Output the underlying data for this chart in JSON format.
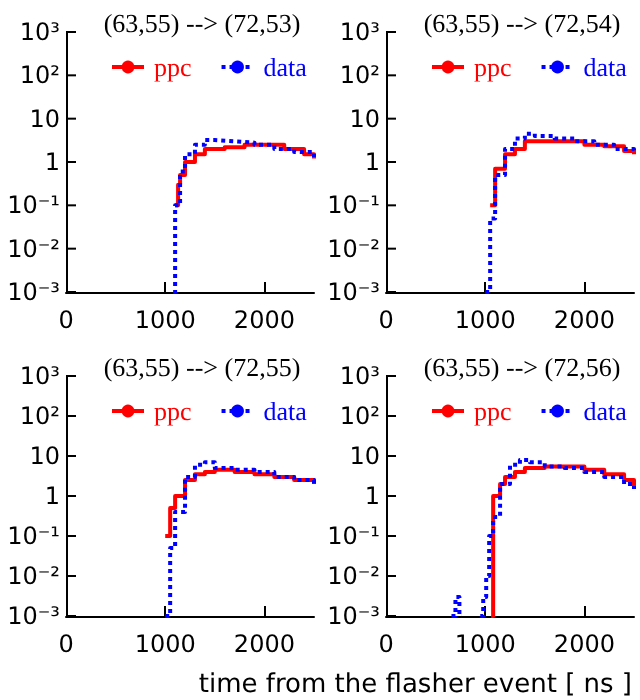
{
  "chart_data": [
    {
      "type": "step",
      "title": "(63,55) --> (72,53)",
      "legend": "top",
      "marker": "none",
      "grid": false,
      "log": "y",
      "xlim": [
        0,
        2500
      ],
      "xticks": [
        0,
        1000,
        2000
      ],
      "ylim": [
        0.001,
        1000
      ],
      "yticks": [
        {
          "value": 0.001,
          "label": "10⁻³"
        },
        {
          "value": 0.01,
          "label": "10⁻²"
        },
        {
          "value": 0.1,
          "label": "10⁻¹"
        },
        {
          "value": 1,
          "label": "1"
        },
        {
          "value": 10,
          "label": "10"
        },
        {
          "value": 100,
          "label": "10²"
        },
        {
          "value": 1000,
          "label": "10³"
        }
      ],
      "series": [
        {
          "name": "ppc",
          "color": "#ff0000",
          "line_style": "solid",
          "x": [
            1100,
            1130,
            1150,
            1200,
            1300,
            1400,
            1500,
            1600,
            1800,
            2000,
            2200,
            2400,
            2500
          ],
          "values": [
            0.1,
            0.3,
            0.5,
            1,
            1.5,
            2,
            2,
            2.2,
            2.5,
            2.5,
            2,
            1.5,
            1.2
          ]
        },
        {
          "name": "data",
          "color": "#0000ff",
          "line_style": "dotted",
          "x": [
            1080,
            1100,
            1150,
            1200,
            1300,
            1400,
            1500,
            1700,
            1900,
            2100,
            2300,
            2500
          ],
          "values": [
            0.001,
            0.1,
            0.6,
            1.5,
            2.5,
            3.2,
            3,
            2.8,
            2.5,
            2,
            1.7,
            1.3
          ]
        }
      ]
    },
    {
      "type": "step",
      "title": "(63,55) --> (72,54)",
      "legend": "top",
      "marker": "none",
      "grid": false,
      "log": "y",
      "xlim": [
        0,
        2500
      ],
      "xticks": [
        0,
        1000,
        2000
      ],
      "ylim": [
        0.001,
        1000
      ],
      "yticks": [
        {
          "value": 0.001,
          "label": "10⁻³"
        },
        {
          "value": 0.01,
          "label": "10⁻²"
        },
        {
          "value": 0.1,
          "label": "10⁻¹"
        },
        {
          "value": 1,
          "label": "1"
        },
        {
          "value": 10,
          "label": "10"
        },
        {
          "value": 100,
          "label": "10²"
        },
        {
          "value": 1000,
          "label": "10³"
        }
      ],
      "series": [
        {
          "name": "ppc",
          "color": "#ff0000",
          "line_style": "solid",
          "x": [
            1050,
            1100,
            1200,
            1300,
            1400,
            1600,
            1800,
            2000,
            2200,
            2400,
            2500
          ],
          "values": [
            0.1,
            0.7,
            1.5,
            2,
            3,
            3,
            3,
            2.5,
            2.3,
            1.8,
            1.5
          ]
        },
        {
          "name": "data",
          "color": "#0000ff",
          "line_style": "dotted",
          "x": [
            1000,
            1050,
            1100,
            1200,
            1300,
            1400,
            1500,
            1700,
            1900,
            2100,
            2300,
            2500
          ],
          "values": [
            0.001,
            0.05,
            0.5,
            2,
            3.5,
            4.5,
            4,
            3.5,
            3,
            2.5,
            2,
            1.5
          ]
        }
      ]
    },
    {
      "type": "step",
      "title": "(63,55) --> (72,55)",
      "legend": "top",
      "marker": "none",
      "grid": false,
      "log": "y",
      "xlim": [
        0,
        2500
      ],
      "xticks": [
        0,
        1000,
        2000
      ],
      "ylim": [
        0.001,
        1000
      ],
      "yticks": [
        {
          "value": 0.001,
          "label": "10⁻³"
        },
        {
          "value": 0.01,
          "label": "10⁻²"
        },
        {
          "value": 0.1,
          "label": "10⁻¹"
        },
        {
          "value": 1,
          "label": "1"
        },
        {
          "value": 10,
          "label": "10"
        },
        {
          "value": 100,
          "label": "10²"
        },
        {
          "value": 1000,
          "label": "10³"
        }
      ],
      "series": [
        {
          "name": "ppc",
          "color": "#ff0000",
          "line_style": "solid",
          "x": [
            1000,
            1050,
            1100,
            1200,
            1300,
            1400,
            1500,
            1700,
            1900,
            2100,
            2300,
            2500
          ],
          "values": [
            0.1,
            0.5,
            1,
            2.5,
            3.5,
            4,
            4.5,
            4,
            3.5,
            3,
            2.5,
            2
          ]
        },
        {
          "name": "data",
          "color": "#0000ff",
          "line_style": "dotted",
          "x": [
            1000,
            1050,
            1100,
            1200,
            1300,
            1400,
            1500,
            1700,
            1900,
            2100,
            2300,
            2500
          ],
          "values": [
            0.001,
            0.05,
            0.4,
            3,
            6,
            7,
            5,
            4.5,
            4,
            3,
            2.5,
            2
          ]
        }
      ]
    },
    {
      "type": "step",
      "title": "(63,55) --> (72,56)",
      "xlabel": "time from the flasher event [ ns ]",
      "legend": "top",
      "marker": "none",
      "grid": false,
      "log": "y",
      "xlim": [
        0,
        2500
      ],
      "xticks": [
        0,
        1000,
        2000
      ],
      "ylim": [
        0.001,
        1000
      ],
      "yticks": [
        {
          "value": 0.001,
          "label": "10⁻³"
        },
        {
          "value": 0.01,
          "label": "10⁻²"
        },
        {
          "value": 0.1,
          "label": "10⁻¹"
        },
        {
          "value": 1,
          "label": "1"
        },
        {
          "value": 10,
          "label": "10"
        },
        {
          "value": 100,
          "label": "10²"
        },
        {
          "value": 1000,
          "label": "10³"
        }
      ],
      "series": [
        {
          "name": "ppc",
          "color": "#ff0000",
          "line_style": "solid",
          "x": [
            1060,
            1080,
            1150,
            1200,
            1300,
            1400,
            1600,
            1800,
            2000,
            2200,
            2400,
            2500
          ],
          "values": [
            0.001,
            1,
            2,
            3,
            4,
            5,
            5.5,
            5.5,
            4.5,
            3.5,
            2.5,
            1.5
          ]
        },
        {
          "name": "data",
          "color": "#0000ff",
          "line_style": "dotted",
          "x": [
            660,
            700,
            740,
            760,
            950,
            980,
            1010,
            1040,
            1080,
            1150,
            1250,
            1350,
            1450,
            1600,
            1800,
            2000,
            2200,
            2400,
            2500
          ],
          "values": [
            0.001,
            0.003,
            0.001,
            null,
            0.001,
            0.003,
            0.01,
            0.1,
            0.3,
            2,
            6,
            8,
            7,
            5.5,
            5,
            4,
            3,
            2,
            1.5
          ]
        }
      ]
    }
  ]
}
